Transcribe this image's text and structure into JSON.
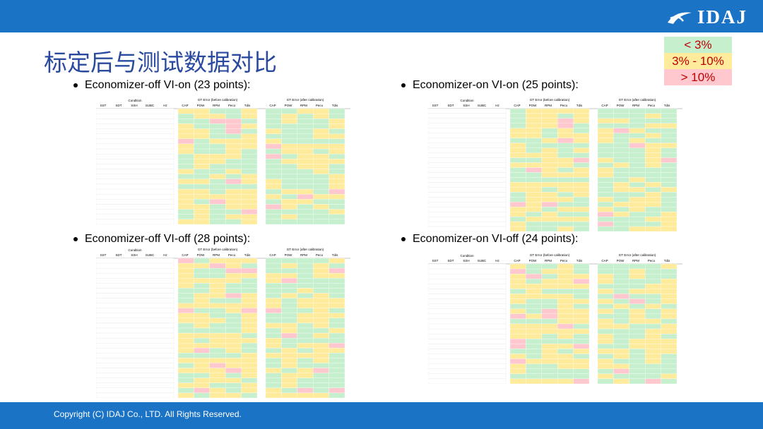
{
  "brand": {
    "name": "IDAJ"
  },
  "title": "标定后与测试数据对比",
  "legend": [
    {
      "label": "< 3%",
      "color": "#c6efce"
    },
    {
      "label": "3% - 10%",
      "color": "#ffeb9c"
    },
    {
      "label": "> 10%",
      "color": "#ffc7ce"
    }
  ],
  "sections": [
    {
      "heading": "Economizer-off  VI-on (23 points):",
      "rows": 23
    },
    {
      "heading": "Economizer-on  VI-on (25 points):",
      "rows": 25
    },
    {
      "heading": "Economizer-off  VI-off (28 points):",
      "rows": 28
    },
    {
      "heading": "Economizer-on  VI-off (24 points):",
      "rows": 24
    }
  ],
  "table_headers": {
    "condition": "Condition",
    "condition_cols": [
      "SST",
      "SDT",
      "SSH",
      "SUBC",
      "Hz"
    ],
    "before": "GT Error (before calibration)",
    "after": "GT Error (after calibration)",
    "error_cols": [
      "CAP",
      "POW",
      "RPM",
      "Peco",
      "Tdis"
    ]
  },
  "footer": "Copyright (C)  IDAJ Co., LTD. All Rights Reserved.",
  "colors": {
    "bar": "#1a73c4",
    "title": "#2a4aa0",
    "green": "#c6efce",
    "yellow": "#ffeb9c",
    "red": "#ffc7ce"
  }
}
